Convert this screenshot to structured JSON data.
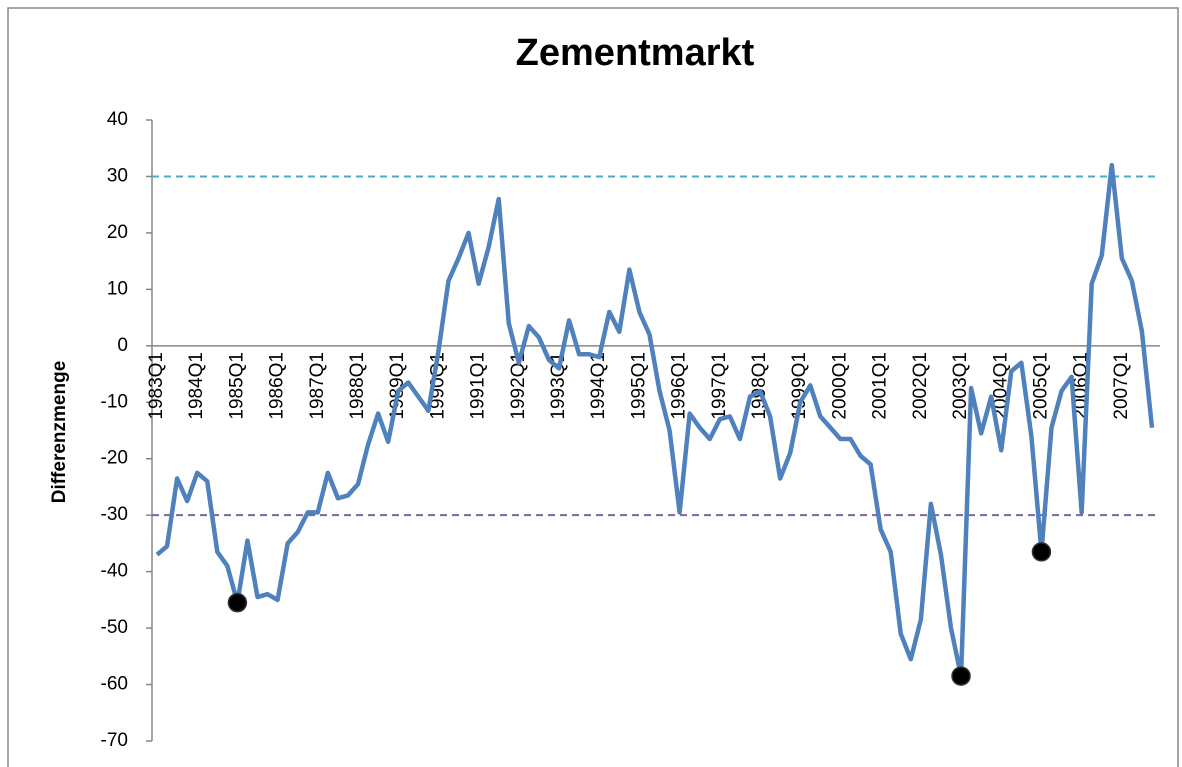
{
  "chart_data": {
    "type": "line",
    "title": "Zementmarkt",
    "y_label": "Differenzmenge",
    "categories": [
      "1983Q1",
      null,
      null,
      null,
      "1984Q1",
      null,
      null,
      null,
      "1985Q1",
      null,
      null,
      null,
      "1986Q1",
      null,
      null,
      null,
      "1987Q1",
      null,
      null,
      null,
      "1988Q1",
      null,
      null,
      null,
      "1989Q1",
      null,
      null,
      null,
      "1990Q1",
      null,
      null,
      null,
      "1991Q1",
      null,
      null,
      null,
      "1992Q1",
      null,
      null,
      null,
      "1993Q1",
      null,
      null,
      null,
      "1994Q1",
      null,
      null,
      null,
      "1995Q1",
      null,
      null,
      null,
      "1996Q1",
      null,
      null,
      null,
      "1997Q1",
      null,
      null,
      null,
      "1998Q1",
      null,
      null,
      null,
      "1999Q1",
      null,
      null,
      null,
      "2000Q1",
      null,
      null,
      null,
      "2001Q1",
      null,
      null,
      null,
      "2002Q1",
      null,
      null,
      null,
      "2003Q1",
      null,
      null,
      null,
      "2004Q1",
      null,
      null,
      null,
      "2005Q1",
      null,
      null,
      null,
      "2006Q1",
      null,
      null,
      null,
      "2007Q1",
      null,
      null,
      null
    ],
    "series": [
      {
        "color": "#4f81bd",
        "values": [
          -37,
          -35.5,
          -23.5,
          -27.5,
          -22.5,
          -24,
          -36.5,
          -39,
          -45.5,
          -34.5,
          -44.5,
          -44,
          -45,
          -35,
          -33,
          -29.5,
          -29.5,
          -22.5,
          -27,
          -26.5,
          -24.5,
          -17.5,
          -12,
          -17,
          -8,
          -6.5,
          -9,
          -11.5,
          -1,
          11.5,
          15.5,
          20,
          11,
          17.5,
          26,
          4,
          -3,
          3.5,
          1.5,
          -2.5,
          -4,
          4.5,
          -1.5,
          -1.5,
          -2,
          6,
          2.5,
          13.5,
          6,
          2,
          -8,
          -15,
          -29.5,
          -12,
          -14.5,
          -16.5,
          -13,
          -12.5,
          -16.5,
          -9,
          -8,
          -12.5,
          -23.5,
          -19,
          -10,
          -7,
          -12.5,
          -14.5,
          -16.5,
          -16.5,
          -19.5,
          -21,
          -32.5,
          -36.5,
          -51,
          -55.5,
          -48.5,
          -28,
          -37,
          -50,
          -58.5,
          -7.5,
          -15.5,
          -9,
          -18.5,
          -4.5,
          -3,
          -16,
          -36.5,
          -14.5,
          -8,
          -5.5,
          -29.5,
          11,
          16,
          32,
          15.5,
          11.5,
          2.5,
          -14.5
        ]
      }
    ],
    "highlight_points": [
      8,
      80,
      88
    ],
    "highlight_color": "#000000",
    "reference_lines": [
      {
        "value": 30,
        "color": "#4bacc6"
      },
      {
        "value": -30,
        "color": "#8064a2"
      }
    ],
    "ylim": [
      -70,
      40
    ],
    "yticks": [
      -70,
      -60,
      -50,
      -40,
      -30,
      -20,
      -10,
      0,
      10,
      20,
      30,
      40
    ]
  }
}
